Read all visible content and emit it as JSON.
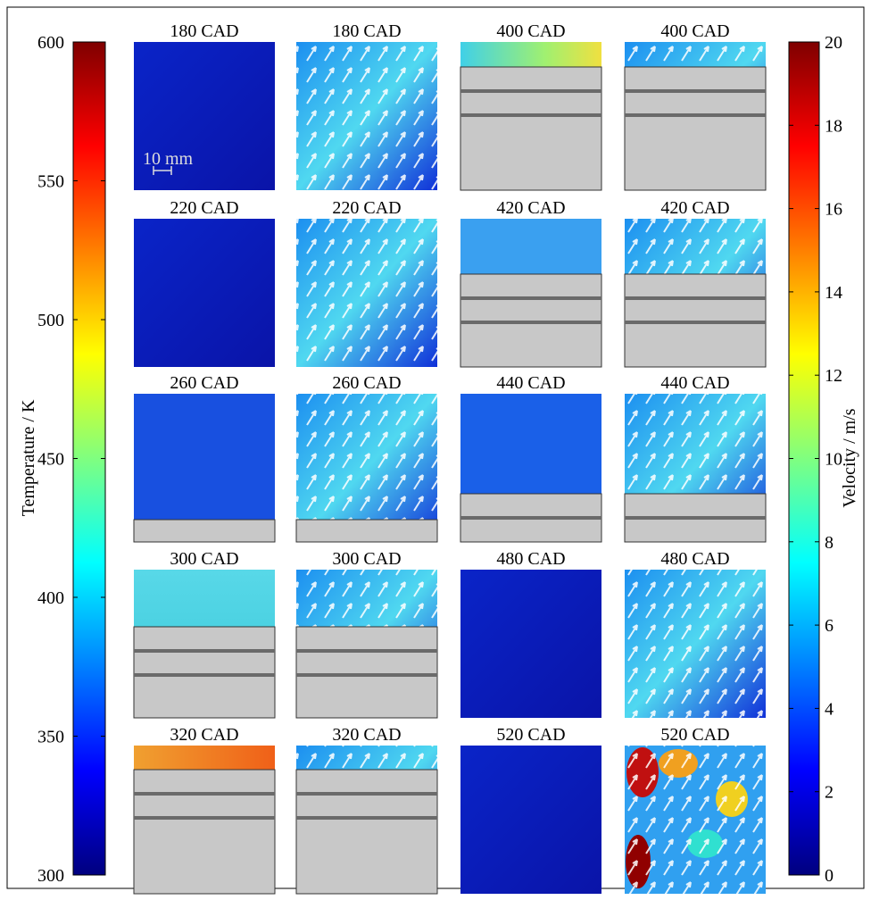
{
  "colorbars": [
    {
      "label": "Temperature / K",
      "lim": [
        300,
        600
      ],
      "ticks": [
        300,
        350,
        400,
        450,
        500,
        550,
        600
      ]
    },
    {
      "label": "Velocity / m/s",
      "lim": [
        0,
        20
      ],
      "ticks": [
        0,
        2,
        4,
        6,
        8,
        10,
        12,
        14,
        16,
        18,
        20
      ]
    }
  ],
  "panels": [
    {
      "title": "180 CAD"
    },
    {
      "title": "180 CAD"
    },
    {
      "title": "400 CAD"
    },
    {
      "title": "400 CAD"
    },
    {
      "title": "220 CAD"
    },
    {
      "title": "220 CAD"
    },
    {
      "title": "420 CAD"
    },
    {
      "title": "420 CAD"
    },
    {
      "title": "260 CAD"
    },
    {
      "title": "260 CAD"
    },
    {
      "title": "440 CAD"
    },
    {
      "title": "440 CAD"
    },
    {
      "title": "300 CAD"
    },
    {
      "title": "300 CAD"
    },
    {
      "title": "480 CAD"
    },
    {
      "title": "480 CAD"
    },
    {
      "title": "320 CAD"
    },
    {
      "title": "320 CAD"
    },
    {
      "title": "520 CAD"
    },
    {
      "title": "520 CAD"
    }
  ],
  "scale_bar": "10 mm"
}
